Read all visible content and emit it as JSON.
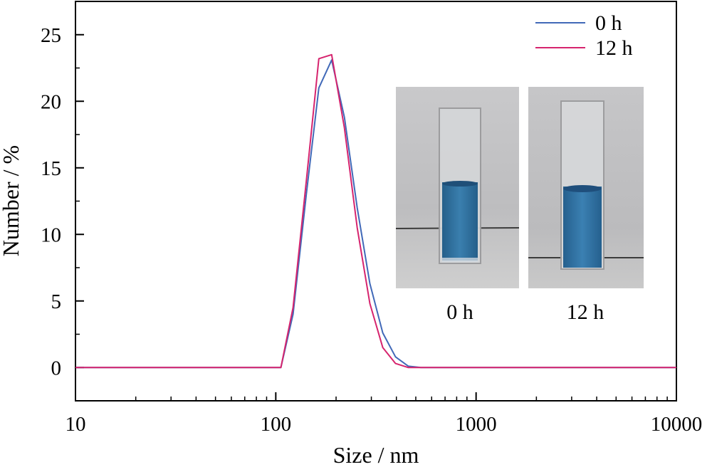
{
  "chart_data": {
    "type": "line",
    "xlabel": "Size / nm",
    "ylabel": "Number / %",
    "xscale": "log",
    "xlim": [
      10,
      10000
    ],
    "ylim": [
      -2.5,
      27.5
    ],
    "grid": false,
    "legend_position": "top-right",
    "x_ticks": [
      {
        "value": 10,
        "label": "10"
      },
      {
        "value": 100,
        "label": "100"
      },
      {
        "value": 1000,
        "label": "1000"
      },
      {
        "value": 10000,
        "label": "10000"
      }
    ],
    "y_ticks": [
      {
        "value": 0,
        "label": "0"
      },
      {
        "value": 5,
        "label": "5"
      },
      {
        "value": 10,
        "label": "10"
      },
      {
        "value": 15,
        "label": "15"
      },
      {
        "value": 20,
        "label": "20"
      },
      {
        "value": 25,
        "label": "25"
      }
    ],
    "series": [
      {
        "name": "0 h",
        "color": "#4169b8",
        "points": [
          [
            10,
            0
          ],
          [
            106,
            0
          ],
          [
            122,
            4.0
          ],
          [
            142,
            13.0
          ],
          [
            164,
            21.0
          ],
          [
            190,
            23.1
          ],
          [
            220,
            18.8
          ],
          [
            255,
            12.0
          ],
          [
            295,
            6.3
          ],
          [
            342,
            2.6
          ],
          [
            396,
            0.8
          ],
          [
            459,
            0.1
          ],
          [
            530,
            0
          ],
          [
            10000,
            0
          ]
        ]
      },
      {
        "name": "12 h",
        "color": "#d6246e",
        "points": [
          [
            10,
            0
          ],
          [
            106,
            0
          ],
          [
            122,
            4.5
          ],
          [
            142,
            14.0
          ],
          [
            164,
            23.2
          ],
          [
            190,
            23.5
          ],
          [
            220,
            18.0
          ],
          [
            255,
            10.5
          ],
          [
            295,
            4.8
          ],
          [
            342,
            1.5
          ],
          [
            396,
            0.3
          ],
          [
            459,
            0
          ],
          [
            10000,
            0
          ]
        ]
      }
    ]
  },
  "inset": {
    "photos": [
      {
        "caption": "0 h",
        "caption_color": "#4169b8",
        "liquid_color": "#2e6f9e"
      },
      {
        "caption": "12 h",
        "caption_color": "#d6246e",
        "liquid_color": "#2e6fa3"
      }
    ]
  }
}
